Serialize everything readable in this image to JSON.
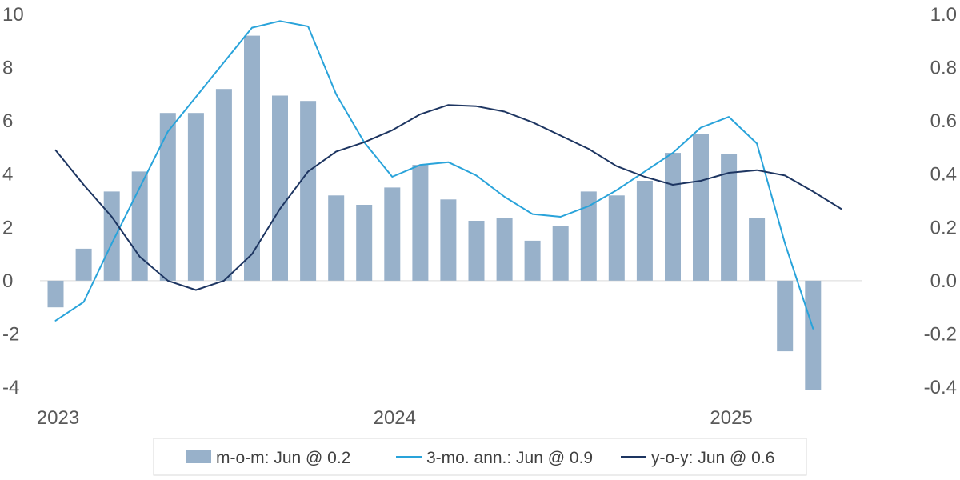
{
  "chart_data": {
    "type": "bar+line",
    "title": "",
    "x": [
      "2023-01",
      "2023-02",
      "2023-03",
      "2023-04",
      "2023-05",
      "2023-06",
      "2023-07",
      "2023-08",
      "2023-09",
      "2023-10",
      "2023-11",
      "2023-12",
      "2024-01",
      "2024-02",
      "2024-03",
      "2024-04",
      "2024-05",
      "2024-06",
      "2024-07",
      "2024-08",
      "2024-09",
      "2024-10",
      "2024-11",
      "2024-12",
      "2025-01",
      "2025-02",
      "2025-03",
      "2025-04",
      "2025-05",
      "2025-06"
    ],
    "x_tick_labels": [
      {
        "index": 0,
        "label": "2023"
      },
      {
        "index": 12,
        "label": "2024"
      },
      {
        "index": 24,
        "label": "2025"
      }
    ],
    "left_axis": {
      "ylim": [
        -4,
        10
      ],
      "ticks": [
        10,
        8,
        6,
        4,
        2,
        0,
        -2,
        -4
      ],
      "tick_labels": [
        "10",
        "8",
        "6",
        "4",
        "2",
        "0",
        "-2",
        "-4"
      ]
    },
    "right_axis": {
      "ylim": [
        -0.4,
        1.0
      ],
      "ticks": [
        1.0,
        0.8,
        0.6,
        0.4,
        0.2,
        0.0,
        -0.2,
        -0.4
      ],
      "tick_labels": [
        "1.0",
        "0.8",
        "0.6",
        "0.4",
        "0.2",
        "0.0",
        "-0.2",
        "-0.4"
      ]
    },
    "series": [
      {
        "name": "m-o-m: Jun @ 0.2",
        "kind": "bar",
        "axis": "left",
        "color": "#98b1ca",
        "values": [
          -1.0,
          1.2,
          3.35,
          4.1,
          6.3,
          6.3,
          7.2,
          9.2,
          6.95,
          6.75,
          3.2,
          2.85,
          3.5,
          4.35,
          3.05,
          2.25,
          2.35,
          1.5,
          2.05,
          3.35,
          3.2,
          3.75,
          4.8,
          5.5,
          4.75,
          2.35,
          -2.65,
          -4.1,
          null,
          null
        ]
      },
      {
        "name": "3-mo. ann.: Jun @ 0.9",
        "kind": "line",
        "axis": "left",
        "color": "#29a3da",
        "values": [
          -1.5,
          -0.8,
          1.4,
          3.5,
          5.6,
          6.9,
          8.2,
          9.5,
          9.75,
          9.55,
          7.0,
          5.2,
          3.9,
          4.35,
          4.45,
          3.95,
          3.15,
          2.5,
          2.4,
          2.8,
          3.4,
          4.1,
          4.8,
          5.75,
          6.15,
          5.15,
          1.4,
          -1.8,
          null,
          null
        ]
      },
      {
        "name": "y-o-y: Jun @ 0.6",
        "kind": "line",
        "axis": "right",
        "color": "#1d3561",
        "values": [
          0.49,
          0.36,
          0.24,
          0.09,
          0.0,
          -0.035,
          0.0,
          0.1,
          0.27,
          0.41,
          0.485,
          0.52,
          0.565,
          0.625,
          0.66,
          0.655,
          0.635,
          0.595,
          0.545,
          0.495,
          0.43,
          0.39,
          0.36,
          0.375,
          0.405,
          0.415,
          0.395,
          0.335,
          0.27,
          null
        ]
      }
    ],
    "legend": {
      "position": "bottom",
      "boxed": true
    }
  }
}
